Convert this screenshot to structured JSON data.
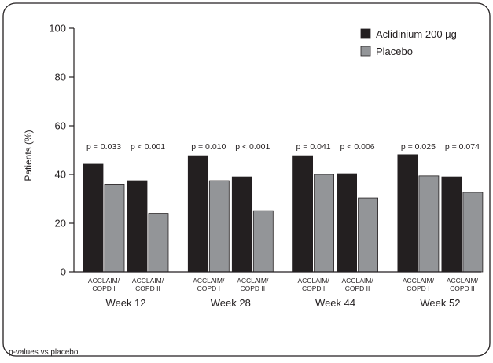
{
  "chart_data": {
    "type": "bar",
    "ylabel": "Patients (%)",
    "ylim": [
      0,
      100
    ],
    "yticks": [
      0,
      20,
      40,
      60,
      80,
      100
    ],
    "grid": false,
    "legend_position": "top-right",
    "groups": [
      {
        "label": "Week 12",
        "subgroups": [
          {
            "label_line1": "ACCLAIM/",
            "label_line2": "COPD I",
            "pvalue": "p = 0.033",
            "values": [
              44.2,
              36.0
            ]
          },
          {
            "label_line1": "ACCLAIM/",
            "label_line2": "COPD II",
            "pvalue": "p < 0.001",
            "values": [
              37.4,
              24.0
            ]
          }
        ]
      },
      {
        "label": "Week 28",
        "subgroups": [
          {
            "label_line1": "ACCLAIM/",
            "label_line2": "COPD I",
            "pvalue": "p = 0.010",
            "values": [
              47.7,
              37.4
            ]
          },
          {
            "label_line1": "ACCLAIM/",
            "label_line2": "COPD II",
            "pvalue": "p < 0.001",
            "values": [
              39.0,
              25.1
            ]
          }
        ]
      },
      {
        "label": "Week 44",
        "subgroups": [
          {
            "label_line1": "ACCLAIM/",
            "label_line2": "COPD I",
            "pvalue": "p = 0.041",
            "values": [
              47.7,
              40.0
            ]
          },
          {
            "label_line1": "ACCLAIM/",
            "label_line2": "COPD II",
            "pvalue": "p < 0.006",
            "values": [
              40.3,
              30.3
            ]
          }
        ]
      },
      {
        "label": "Week 52",
        "subgroups": [
          {
            "label_line1": "ACCLAIM/",
            "label_line2": "COPD I",
            "pvalue": "p = 0.025",
            "values": [
              48.1,
              39.4
            ]
          },
          {
            "label_line1": "ACCLAIM/",
            "label_line2": "COPD II",
            "pvalue": "p = 0.074",
            "values": [
              39.0,
              32.6
            ]
          }
        ]
      }
    ],
    "series": [
      {
        "name": "Aclidinium 200 μg",
        "color": "#231f20"
      },
      {
        "name": "Placebo",
        "color": "#939598"
      }
    ]
  },
  "footnote": "p-values vs placebo."
}
